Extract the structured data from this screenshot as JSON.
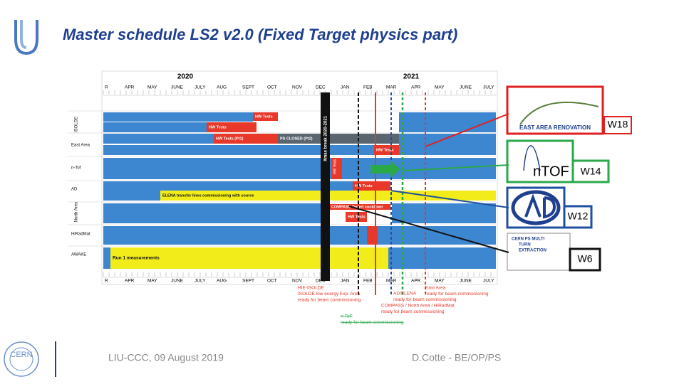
{
  "header": {
    "title": "Master schedule LS2 v2.0 (Fixed Target physics part)"
  },
  "schedule": {
    "years": [
      "2020",
      "2021"
    ],
    "months": [
      "R",
      "APR",
      "MAY",
      "JUNE",
      "JULY",
      "AUG",
      "SEPT",
      "OCT",
      "NOV",
      "DEC",
      "JAN",
      "FEB",
      "MAR",
      "APR",
      "MAY",
      "JUNE",
      "JULY"
    ],
    "rows": [
      "ISOLDE",
      "East Area",
      "n-Tof",
      "AD",
      "North Area",
      "HiRadMat",
      "AWAKE"
    ],
    "bars": [
      "HW Tests",
      "HW Tests",
      "HW Tests (Pt1)",
      "PS CLOSED (Pt2)",
      "HW Tests",
      "HW Tests",
      "HW Tests",
      "ELENA transfer lines commissioning with source",
      "COMPASS Target cooldown",
      "HW Tests",
      "Run 1 measurements"
    ],
    "xmas": "Xmas break 2020-2021",
    "notes": [
      {
        "lines": [
          "HIE-ISOLDE",
          "ISOLDE low energy Exp. Area",
          "ready for beam commissioning"
        ]
      },
      {
        "lines": [
          "AD/ELENA",
          "ready for beam commissioning"
        ]
      },
      {
        "lines": [
          "East Area",
          "ready for beam commissioning"
        ]
      },
      {
        "lines": [
          "COMPASS / North Area / HiRadMat",
          "ready for beam commissioning"
        ]
      },
      {
        "lines": [
          "n-ToF",
          "ready for beam commissioning"
        ]
      }
    ]
  },
  "callouts": [
    {
      "label": "W18",
      "logo": "EAST AREA RENOVATION"
    },
    {
      "label": "W14",
      "logo": "nTOF"
    },
    {
      "label": "W12"
    },
    {
      "label": "W6",
      "logo_lines": [
        "CERN PS MULTI",
        "TURN",
        "EXTRACTION"
      ]
    }
  ],
  "footer": {
    "left": "LIU-CCC, 09 August 2019",
    "right": "D.Cotte - BE/OP/PS",
    "logo": "CERN"
  }
}
